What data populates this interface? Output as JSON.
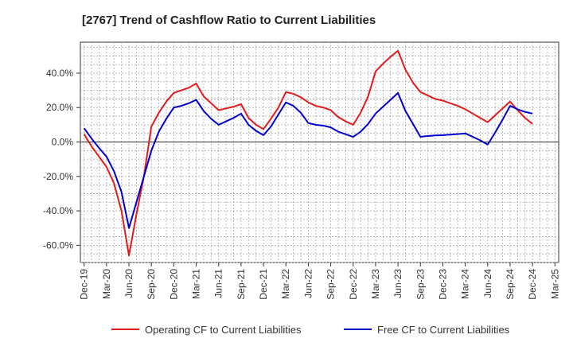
{
  "chart_data": {
    "type": "line",
    "title": "[2767]  Trend of Cashflow Ratio to Current Liabilities",
    "xlabel": "",
    "ylabel": "",
    "ylim": [
      -70,
      58
    ],
    "grid": true,
    "legend_position": "bottom",
    "y_ticks": [
      40,
      20,
      0,
      -20,
      -40,
      -60
    ],
    "y_tick_labels": [
      "40.0%",
      "20.0%",
      "0.0%",
      "-20.0%",
      "-40.0%",
      "-60.0%"
    ],
    "x_tick_labels": [
      "Dec-19",
      "Mar-20",
      "Jun-20",
      "Sep-20",
      "Dec-20",
      "Mar-21",
      "Jun-21",
      "Sep-21",
      "Dec-21",
      "Mar-22",
      "Jun-22",
      "Sep-22",
      "Dec-22",
      "Mar-23",
      "Jun-23",
      "Sep-23",
      "Dec-23",
      "Mar-24",
      "Jun-24",
      "Sep-24",
      "Dec-24",
      "Mar-25"
    ],
    "x_months": [
      "Dec-19",
      "Jan-20",
      "Feb-20",
      "Mar-20",
      "Apr-20",
      "May-20",
      "Jun-20",
      "Jul-20",
      "Aug-20",
      "Sep-20",
      "Oct-20",
      "Nov-20",
      "Dec-20",
      "Jan-21",
      "Feb-21",
      "Mar-21",
      "Apr-21",
      "May-21",
      "Jun-21",
      "Jul-21",
      "Aug-21",
      "Sep-21",
      "Oct-21",
      "Nov-21",
      "Dec-21",
      "Jan-22",
      "Feb-22",
      "Mar-22",
      "Apr-22",
      "May-22",
      "Jun-22",
      "Jul-22",
      "Aug-22",
      "Sep-22",
      "Oct-22",
      "Nov-22",
      "Dec-22",
      "Jan-23",
      "Feb-23",
      "Mar-23",
      "Apr-23",
      "May-23",
      "Jun-23",
      "Jul-23",
      "Aug-23",
      "Sep-23",
      "Oct-23",
      "Nov-23",
      "Dec-23",
      "Jan-24",
      "Feb-24",
      "Mar-24",
      "Apr-24",
      "May-24",
      "Jun-24",
      "Jul-24",
      "Aug-24",
      "Sep-24",
      "Oct-24",
      "Nov-24",
      "Dec-24",
      "Jan-25",
      "Feb-25",
      "Mar-25"
    ],
    "series": [
      {
        "name": "Operating CF to Current Liabilities",
        "color": "#e41a1c",
        "values": [
          4.5,
          -2.5,
          -8.5,
          -14.5,
          -24,
          -40,
          -66,
          -42,
          -20,
          9,
          17,
          23.5,
          28.5,
          30,
          31.5,
          34,
          26.5,
          22.5,
          18.5,
          19.5,
          20.5,
          22,
          14,
          10,
          7.5,
          13.5,
          20,
          29,
          28,
          26,
          23,
          21,
          20,
          18.5,
          14.5,
          12,
          10,
          17,
          26.5,
          41,
          45.5,
          49.5,
          53,
          42,
          34.5,
          29,
          27,
          25,
          24,
          22.5,
          21,
          19,
          16.5,
          14,
          11.5,
          15.5,
          19.5,
          23.5,
          18.5,
          14,
          10.5,
          null,
          null,
          null
        ]
      },
      {
        "name": "Free CF to Current Liabilities",
        "color": "#0000cc",
        "values": [
          8,
          2,
          -3.5,
          -8.5,
          -17,
          -29,
          -50,
          -35,
          -20,
          -5,
          6,
          13.5,
          20,
          21,
          22.5,
          24.5,
          18,
          13.5,
          10,
          12,
          14,
          16.5,
          10,
          6.5,
          4,
          9,
          16,
          23,
          21,
          17,
          11,
          10,
          9.5,
          8.5,
          6,
          4.5,
          3,
          6,
          10.5,
          16.5,
          20.5,
          24.5,
          28.5,
          18,
          10.5,
          3,
          3.5,
          3.8,
          4,
          4.3,
          4.6,
          5,
          3,
          1,
          -1.5,
          5.5,
          13,
          21,
          19,
          17.5,
          16.5,
          null,
          null,
          null
        ]
      }
    ]
  }
}
